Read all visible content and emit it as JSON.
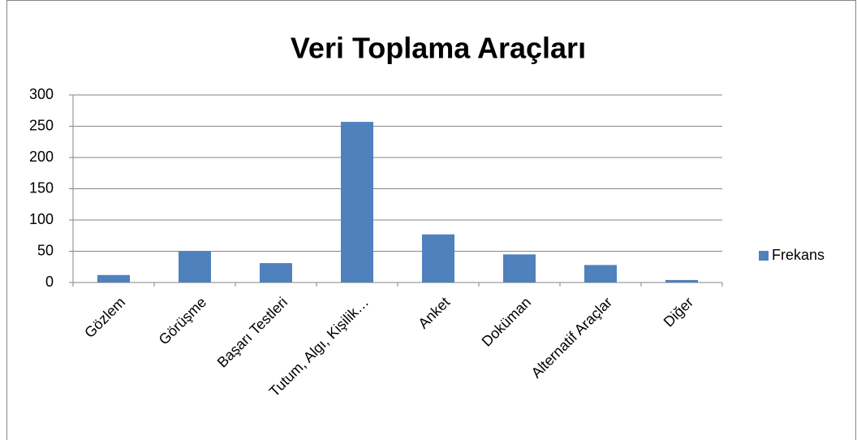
{
  "chart_data": {
    "type": "bar",
    "title": "Veri Toplama Araçları",
    "categories": [
      "Gözlem",
      "Görüşme",
      "Başarı Testleri",
      "Tutum, Algı, Kişilik…",
      "Anket",
      "Doküman",
      "Alternatif Araçlar",
      "Diğer"
    ],
    "series": [
      {
        "name": "Frekans",
        "color": "#4f81bd",
        "values": [
          12,
          50,
          31,
          257,
          77,
          45,
          28,
          4
        ]
      }
    ],
    "ylim": [
      0,
      300
    ],
    "yticks": [
      0,
      50,
      100,
      150,
      200,
      250,
      300
    ],
    "grid": true,
    "legend": "right"
  }
}
